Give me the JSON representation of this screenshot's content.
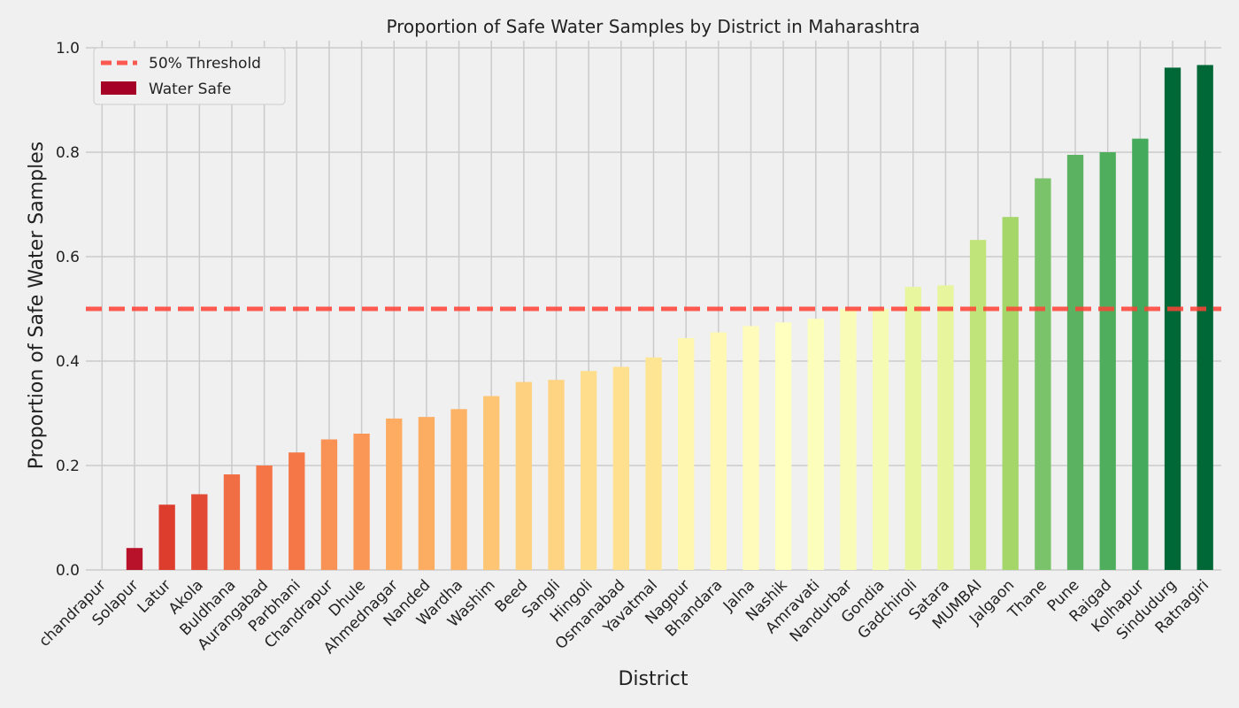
{
  "chart_data": {
    "type": "bar",
    "title": "Proportion of Safe Water Samples by District in Maharashtra",
    "xlabel": "District",
    "ylabel": "Proportion of Safe Water Samples",
    "ylim": [
      0,
      1.0
    ],
    "yticks": [
      "0.0",
      "0.2",
      "0.4",
      "0.6",
      "0.8",
      "1.0"
    ],
    "grid": true,
    "legend_position": "top-left",
    "categories": [
      "chandrapur",
      "Solapur",
      "Latur",
      "Akola",
      "Buldhana",
      "Aurangabad",
      "Parbhani",
      "Chandrapur",
      "Dhule",
      "Ahmednagar",
      "Nanded",
      "Wardha",
      "Washim",
      "Beed",
      "Sangli",
      "Hingoli",
      "Osmanabad",
      "Yavatmal",
      "Nagpur",
      "Bhandara",
      "Jalna",
      "Nashik",
      "Amravati",
      "Nandurbar",
      "Gondia",
      "Gadchiroli",
      "Satara",
      "MUMBAI",
      "Jalgaon",
      "Thane",
      "Pune",
      "Raigad",
      "Kolhapur",
      "Sindudurg",
      "Ratnagiri"
    ],
    "series": [
      {
        "name": "Water Safe",
        "values": [
          0.0,
          0.042,
          0.125,
          0.145,
          0.183,
          0.2,
          0.225,
          0.25,
          0.261,
          0.29,
          0.293,
          0.308,
          0.333,
          0.36,
          0.364,
          0.381,
          0.389,
          0.407,
          0.444,
          0.455,
          0.467,
          0.474,
          0.481,
          0.5,
          0.5,
          0.542,
          0.545,
          0.632,
          0.676,
          0.75,
          0.795,
          0.8,
          0.826,
          0.962,
          0.967
        ],
        "colors": [
          "#a50026",
          "#b8122b",
          "#dd3d2d",
          "#e24a33",
          "#f16d43",
          "#f57547",
          "#f57748",
          "#f99355",
          "#fa9656",
          "#fdac61",
          "#fdad62",
          "#fdb365",
          "#fec574",
          "#fdd17f",
          "#fed482",
          "#fedd8d",
          "#fee08f",
          "#fee593",
          "#fff6af",
          "#fff8b2",
          "#fffbba",
          "#ffffbf",
          "#fcfebc",
          "#f9fcb6",
          "#f6fbb3",
          "#e8f69e",
          "#e7f59c",
          "#c0e47a",
          "#a4d669",
          "#7bc36a",
          "#5bb362",
          "#4fae5d",
          "#45aa5b",
          "#006837",
          "#006837"
        ]
      }
    ],
    "threshold": {
      "name": "50% Threshold",
      "value": 0.5,
      "color": "#ff4136"
    },
    "legend": [
      {
        "label": "50% Threshold",
        "kind": "dashed-line",
        "color": "#ff4136"
      },
      {
        "label": "Water Safe",
        "kind": "patch",
        "color": "#a50026"
      }
    ]
  }
}
